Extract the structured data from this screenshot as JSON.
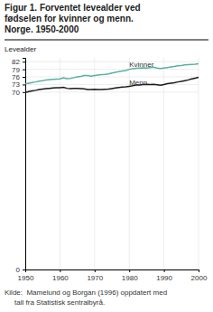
{
  "chart_data": {
    "type": "line",
    "title": "Figur 1. Forventet levealder ved\nfødselen for kvinner og menn.\nNorge. 1950-2000",
    "ylabel": "Levealder",
    "source": "Kilde:  Mamelund og Borgan (1996) oppdatert med\n     tall fra Statistisk sentralbyrå.",
    "x": [
      1950,
      1951,
      1952,
      1953,
      1954,
      1955,
      1956,
      1957,
      1958,
      1959,
      1960,
      1961,
      1962,
      1963,
      1964,
      1965,
      1966,
      1967,
      1968,
      1969,
      1970,
      1971,
      1972,
      1973,
      1974,
      1975,
      1976,
      1977,
      1978,
      1979,
      1980,
      1981,
      1982,
      1983,
      1984,
      1985,
      1986,
      1987,
      1988,
      1989,
      1990,
      1991,
      1992,
      1993,
      1994,
      1995,
      1996,
      1997,
      1998,
      1999,
      2000
    ],
    "series": [
      {
        "name": "Kvinner",
        "color": "#5aafa0",
        "values": [
          73.2,
          73.5,
          73.8,
          74.0,
          74.3,
          74.5,
          74.8,
          74.9,
          75.0,
          75.1,
          75.2,
          75.6,
          75.3,
          75.4,
          75.7,
          76.0,
          76.2,
          76.5,
          76.5,
          76.3,
          76.5,
          76.7,
          76.9,
          77.0,
          77.2,
          77.5,
          77.8,
          78.1,
          78.3,
          78.5,
          79.0,
          79.2,
          79.4,
          79.5,
          79.6,
          79.5,
          79.7,
          79.8,
          79.5,
          79.3,
          79.5,
          79.7,
          79.9,
          80.1,
          80.4,
          80.5,
          80.7,
          80.8,
          80.9,
          81.0,
          81.2
        ]
      },
      {
        "name": "Menn",
        "color": "#1a1a1a",
        "values": [
          69.8,
          70.2,
          70.5,
          70.7,
          71.0,
          71.2,
          71.4,
          71.5,
          71.6,
          71.7,
          71.7,
          71.9,
          71.5,
          71.4,
          71.5,
          71.5,
          71.4,
          71.3,
          71.0,
          71.0,
          71.1,
          71.0,
          71.0,
          71.1,
          71.2,
          71.4,
          71.6,
          71.8,
          72.0,
          72.1,
          72.3,
          72.5,
          72.8,
          72.8,
          73.0,
          73.1,
          73.0,
          73.1,
          72.9,
          72.7,
          73.0,
          73.3,
          73.5,
          73.7,
          74.0,
          74.2,
          74.5,
          74.8,
          75.2,
          75.5,
          75.8
        ]
      }
    ],
    "annotations": [
      {
        "text": "Kvinner",
        "x": 1980,
        "y": 79.5
      },
      {
        "text": "Menn",
        "x": 1980,
        "y": 72.3
      }
    ],
    "xlim": [
      1950,
      2000
    ],
    "xticks": [
      1950,
      1960,
      1970,
      1980,
      1990,
      2000
    ],
    "ylim": [
      0,
      83.5
    ],
    "yticks": [
      0,
      70,
      73,
      76,
      79,
      82
    ],
    "grid": true
  }
}
